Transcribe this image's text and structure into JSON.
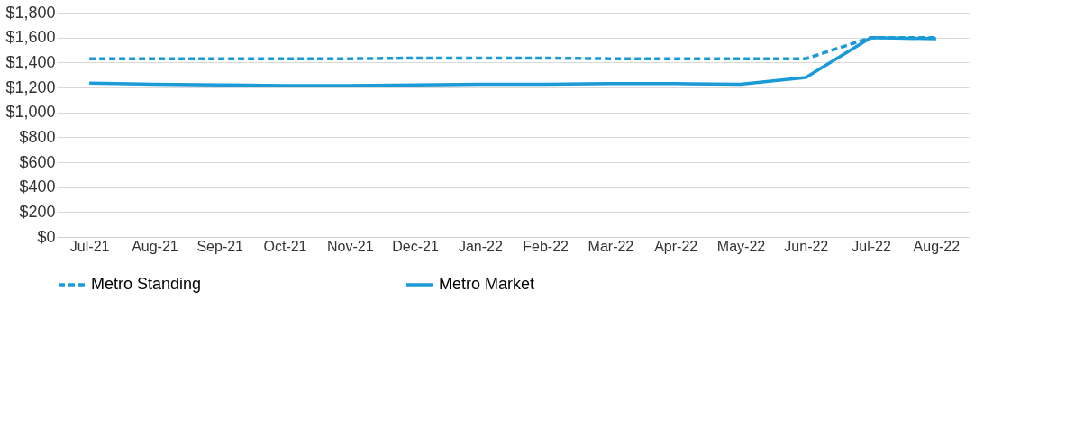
{
  "chart_data": {
    "type": "line",
    "categories": [
      "Jul-21",
      "Aug-21",
      "Sep-21",
      "Oct-21",
      "Nov-21",
      "Dec-21",
      "Jan-22",
      "Feb-22",
      "Mar-22",
      "Apr-22",
      "May-22",
      "Jun-22",
      "Jul-22",
      "Aug-22"
    ],
    "series": [
      {
        "name": "Metro Standing",
        "color": "#1a9ad6",
        "line_style": "dashed",
        "values": [
          1430,
          1430,
          1430,
          1430,
          1430,
          1435,
          1435,
          1435,
          1430,
          1430,
          1430,
          1430,
          1600,
          1600
        ]
      },
      {
        "name": "Metro Market",
        "color": "#1a9ad6",
        "line_style": "solid",
        "values": [
          1235,
          1225,
          1220,
          1215,
          1215,
          1220,
          1225,
          1225,
          1230,
          1230,
          1225,
          1280,
          1600,
          1590
        ]
      }
    ],
    "ylim": [
      0,
      1800
    ],
    "yticks": [
      {
        "value": 0,
        "label": "$0"
      },
      {
        "value": 200,
        "label": "$200"
      },
      {
        "value": 400,
        "label": "$400"
      },
      {
        "value": 600,
        "label": "$600"
      },
      {
        "value": 800,
        "label": "$800"
      },
      {
        "value": 1000,
        "label": "$1,000"
      },
      {
        "value": 1200,
        "label": "$1,200"
      },
      {
        "value": 1400,
        "label": "$1,400"
      },
      {
        "value": 1600,
        "label": "$1,600"
      },
      {
        "value": 1800,
        "label": "$1,800"
      }
    ],
    "grid": "y",
    "legend": "bottom",
    "marker": "none"
  }
}
